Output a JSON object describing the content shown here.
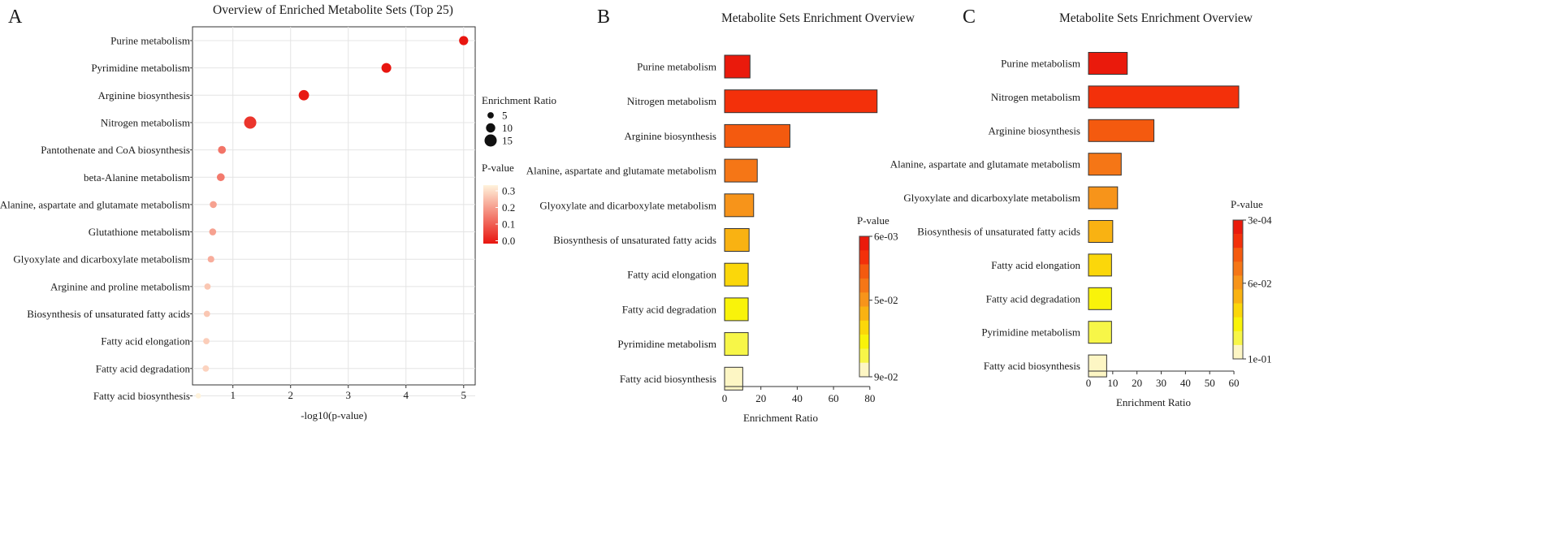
{
  "chart_data": [
    {
      "panel": "A",
      "type": "scatter",
      "title": "Overview of Enriched Metabolite Sets (Top 25)",
      "xlabel": "-log10(p-value)",
      "xlim": [
        0.3,
        5.2
      ],
      "xticks": [
        1,
        2,
        3,
        4,
        5
      ],
      "grid": true,
      "categories": [
        "Purine metabolism",
        "Pyrimidine metabolism",
        "Arginine biosynthesis",
        "Nitrogen metabolism",
        "Pantothenate and CoA biosynthesis",
        "beta-Alanine metabolism",
        "Alanine, aspartate and glutamate metabolism",
        "Glutathione metabolism",
        "Glyoxylate and dicarboxylate metabolism",
        "Arginine and proline metabolism",
        "Biosynthesis of unsaturated fatty acids",
        "Fatty acid elongation",
        "Fatty acid degradation",
        "Fatty acid biosynthesis"
      ],
      "x": [
        5.0,
        3.66,
        2.23,
        1.3,
        0.81,
        0.79,
        0.66,
        0.65,
        0.62,
        0.56,
        0.55,
        0.54,
        0.53,
        0.4
      ],
      "enrichment_ratio": [
        9,
        10,
        11,
        14,
        7,
        7,
        5.5,
        5.5,
        5,
        4.5,
        4.5,
        4.5,
        4.5,
        3
      ],
      "p_value": [
        1e-05,
        0.0002,
        0.006,
        0.05,
        0.15,
        0.16,
        0.22,
        0.22,
        0.24,
        0.28,
        0.28,
        0.29,
        0.3,
        0.4
      ],
      "size_legend": {
        "title": "Enrichment Ratio",
        "values": [
          5,
          10,
          15
        ]
      },
      "color_legend": {
        "title": "P-value",
        "ticks": [
          "0.3",
          "0.2",
          "0.1",
          "0.0"
        ],
        "low_color": "#e8150f",
        "high_color": "#fff3dc"
      }
    },
    {
      "panel": "B",
      "type": "bar",
      "orientation": "horizontal",
      "title": "Metabolite Sets Enrichment Overview",
      "xlabel": "Enrichment Ratio",
      "xlim": [
        0,
        85
      ],
      "xticks": [
        0,
        20,
        40,
        60,
        80
      ],
      "categories": [
        "Purine metabolism",
        "Nitrogen metabolism",
        "Arginine biosynthesis",
        "Alanine, aspartate and glutamate metabolism",
        "Glyoxylate and dicarboxylate metabolism",
        "Biosynthesis of unsaturated fatty acids",
        "Fatty acid elongation",
        "Fatty acid degradation",
        "Pyrimidine metabolism",
        "Fatty acid biosynthesis"
      ],
      "values": [
        14,
        84,
        36,
        18,
        16,
        13.5,
        13,
        13,
        13,
        10
      ],
      "colors": [
        "#ea1a0c",
        "#f3300a",
        "#f45a0f",
        "#f57616",
        "#f7941a",
        "#f9b212",
        "#fbd70a",
        "#f9f30a",
        "#f7f648",
        "#fdf6c4"
      ],
      "legend": {
        "title": "P-value",
        "ticks": [
          "6e-03",
          "5e-02",
          "9e-02"
        ]
      }
    },
    {
      "panel": "C",
      "type": "bar",
      "orientation": "horizontal",
      "title": "Metabolite Sets Enrichment Overview",
      "xlabel": "Enrichment Ratio",
      "xlim": [
        0,
        63
      ],
      "xticks": [
        0,
        10,
        20,
        30,
        40,
        50,
        60
      ],
      "categories": [
        "Purine metabolism",
        "Nitrogen metabolism",
        "Arginine biosynthesis",
        "Alanine, aspartate and glutamate metabolism",
        "Glyoxylate and dicarboxylate metabolism",
        "Biosynthesis of unsaturated fatty acids",
        "Fatty acid elongation",
        "Fatty acid degradation",
        "Pyrimidine metabolism",
        "Fatty acid biosynthesis"
      ],
      "values": [
        16,
        62,
        27,
        13.5,
        12,
        10,
        9.5,
        9.5,
        9.5,
        7.5
      ],
      "colors": [
        "#ea1a0c",
        "#f3300a",
        "#f45a0f",
        "#f57616",
        "#f7941a",
        "#f9b212",
        "#fbd70a",
        "#f9f30a",
        "#f7f648",
        "#fdf6c4"
      ],
      "legend": {
        "title": "P-value",
        "ticks": [
          "3e-04",
          "6e-02",
          "1e-01"
        ]
      }
    }
  ]
}
